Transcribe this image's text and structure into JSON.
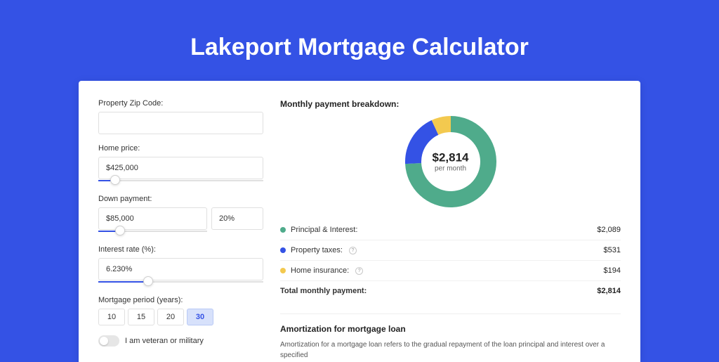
{
  "page": {
    "title": "Lakeport Mortgage Calculator"
  },
  "colors": {
    "brand_bg": "#3452e5",
    "app_bg": "#ffffff",
    "border": "#e0e0e0",
    "text": "#333333",
    "muted": "#666666"
  },
  "form": {
    "zip": {
      "label": "Property Zip Code:",
      "value": ""
    },
    "price": {
      "label": "Home price:",
      "value": "$425,000",
      "slider_pct": 10
    },
    "down": {
      "label": "Down payment:",
      "amount": "$85,000",
      "percent": "20%",
      "slider_pct": 20
    },
    "rate": {
      "label": "Interest rate (%):",
      "value": "6.230%",
      "slider_pct": 30
    },
    "period": {
      "label": "Mortgage period (years):",
      "options": [
        "10",
        "15",
        "20",
        "30"
      ],
      "selected": "30"
    },
    "veteran": {
      "label": "I am veteran or military",
      "on": false
    }
  },
  "breakdown": {
    "title": "Monthly payment breakdown:",
    "center_amount": "$2,814",
    "center_sub": "per month",
    "chart": {
      "radius": 65,
      "inner_radius": 42,
      "background": "#ffffff",
      "series": [
        {
          "key": "pi",
          "value": 2089,
          "color": "#4fab8b"
        },
        {
          "key": "tax",
          "value": 531,
          "color": "#3452e5"
        },
        {
          "key": "ins",
          "value": 194,
          "color": "#f3c94f"
        }
      ]
    },
    "rows": [
      {
        "key": "pi",
        "label": "Principal & Interest:",
        "value": "$2,089",
        "color": "#4fab8b",
        "info": false
      },
      {
        "key": "tax",
        "label": "Property taxes:",
        "value": "$531",
        "color": "#3452e5",
        "info": true
      },
      {
        "key": "ins",
        "label": "Home insurance:",
        "value": "$194",
        "color": "#f3c94f",
        "info": true
      }
    ],
    "total": {
      "label": "Total monthly payment:",
      "value": "$2,814"
    }
  },
  "amort": {
    "title": "Amortization for mortgage loan",
    "text": "Amortization for a mortgage loan refers to the gradual repayment of the loan principal and interest over a specified"
  }
}
